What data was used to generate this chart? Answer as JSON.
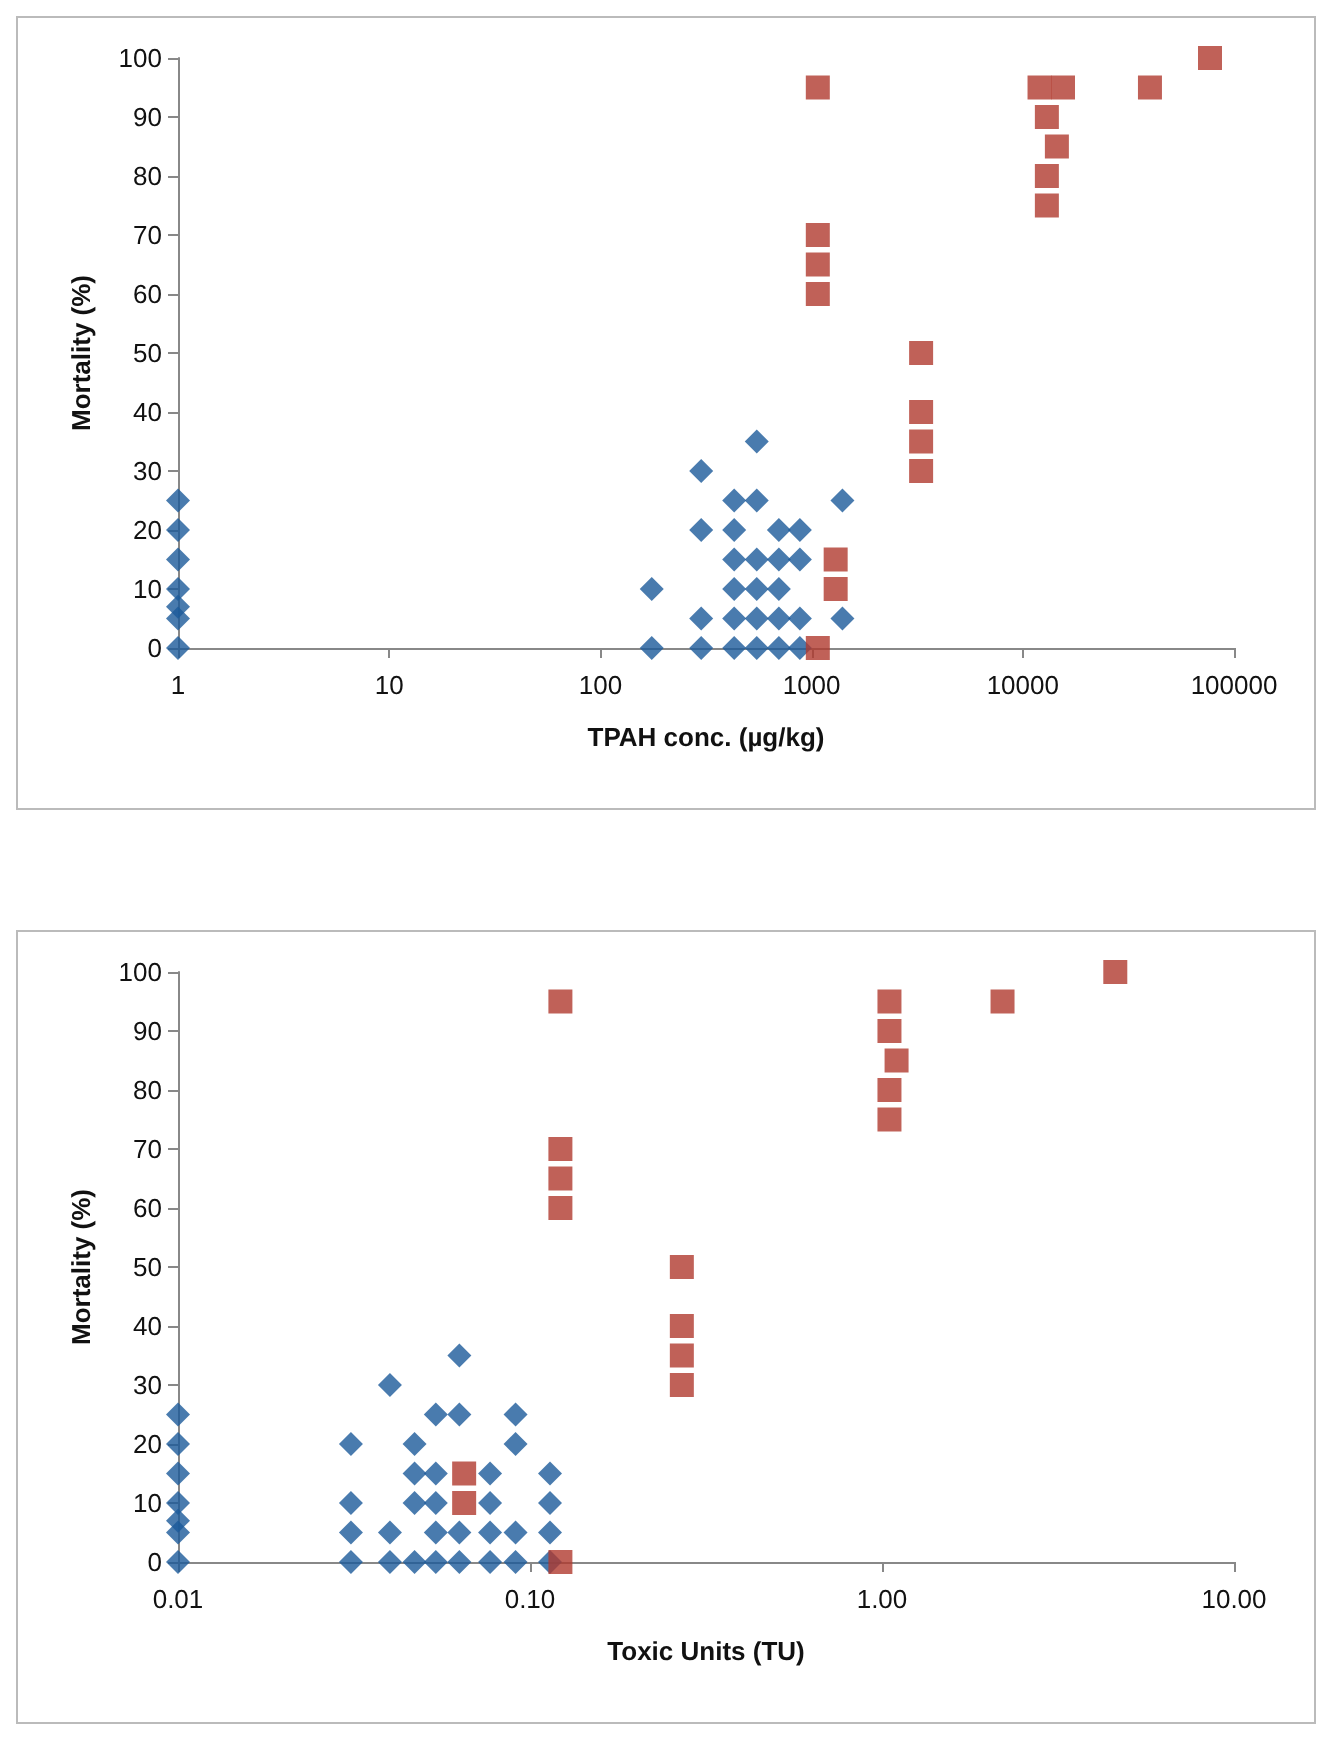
{
  "chart_data": [
    {
      "type": "scatter",
      "xlabel": "TPAH conc. (µg/kg)",
      "ylabel": "Mortality (%)",
      "log": "x",
      "grid": false,
      "xlim": [
        1,
        100000
      ],
      "xticks": [
        1,
        10,
        100,
        1000,
        10000,
        100000
      ],
      "ylim": [
        0,
        100
      ],
      "yticks": [
        0,
        10,
        20,
        30,
        40,
        50,
        60,
        70,
        80,
        90,
        100
      ],
      "series": [
        {
          "color": "#1c5a9a",
          "marker": "diamond",
          "x": [
            1,
            1,
            1,
            1,
            1,
            1,
            1,
            175,
            175,
            300,
            300,
            300,
            300,
            430,
            430,
            430,
            430,
            430,
            430,
            550,
            550,
            550,
            550,
            550,
            550,
            700,
            700,
            700,
            700,
            700,
            880,
            880,
            880,
            880,
            1400,
            1400
          ],
          "values": [
            0,
            5,
            7,
            10,
            15,
            20,
            25,
            0,
            10,
            30,
            20,
            5,
            0,
            25,
            20,
            15,
            10,
            5,
            0,
            35,
            25,
            15,
            10,
            5,
            0,
            20,
            15,
            10,
            5,
            0,
            20,
            15,
            5,
            0,
            25,
            5
          ]
        },
        {
          "color": "#b03a2e",
          "marker": "square",
          "x": [
            1070,
            1070,
            1070,
            1070,
            1070,
            1300,
            1300,
            3300,
            3300,
            3300,
            3300,
            12000,
            13000,
            13000,
            13000,
            15500,
            14500,
            40000,
            77000
          ],
          "values": [
            95,
            70,
            65,
            60,
            0,
            15,
            10,
            50,
            40,
            35,
            30,
            95,
            90,
            80,
            75,
            95,
            85,
            95,
            100
          ]
        }
      ]
    },
    {
      "type": "scatter",
      "xlabel": "Toxic Units (TU)",
      "ylabel": "Mortality (%)",
      "log": "x",
      "grid": false,
      "xlim": [
        0.01,
        10
      ],
      "xticks": [
        {
          "value": 0.01,
          "label": "0.01"
        },
        {
          "value": 0.1,
          "label": "0.10"
        },
        {
          "value": 1,
          "label": "1.00"
        },
        {
          "value": 10,
          "label": "10.00"
        }
      ],
      "ylim": [
        0,
        100
      ],
      "yticks": [
        0,
        10,
        20,
        30,
        40,
        50,
        60,
        70,
        80,
        90,
        100
      ],
      "series": [
        {
          "color": "#1c5a9a",
          "marker": "diamond",
          "x": [
            0.01,
            0.01,
            0.01,
            0.01,
            0.01,
            0.01,
            0.01,
            0.031,
            0.031,
            0.031,
            0.031,
            0.04,
            0.04,
            0.04,
            0.047,
            0.047,
            0.047,
            0.047,
            0.054,
            0.054,
            0.054,
            0.054,
            0.054,
            0.063,
            0.063,
            0.063,
            0.063,
            0.077,
            0.077,
            0.077,
            0.077,
            0.091,
            0.091,
            0.091,
            0.091,
            0.114,
            0.114,
            0.114,
            0.114
          ],
          "values": [
            0,
            5,
            7,
            10,
            15,
            20,
            25,
            20,
            10,
            5,
            0,
            30,
            5,
            0,
            20,
            15,
            10,
            0,
            25,
            15,
            10,
            5,
            0,
            35,
            25,
            5,
            0,
            15,
            10,
            5,
            0,
            25,
            20,
            5,
            0,
            15,
            10,
            5,
            0
          ]
        },
        {
          "color": "#b03a2e",
          "marker": "square",
          "x": [
            0.065,
            0.065,
            0.122,
            0.122,
            0.122,
            0.122,
            0.122,
            0.27,
            0.27,
            0.27,
            0.27,
            1.05,
            1.05,
            1.05,
            1.05,
            1.1,
            2.2,
            4.6
          ],
          "values": [
            15,
            10,
            95,
            70,
            65,
            60,
            0,
            50,
            40,
            35,
            30,
            95,
            90,
            80,
            75,
            85,
            95,
            100
          ]
        }
      ]
    }
  ]
}
